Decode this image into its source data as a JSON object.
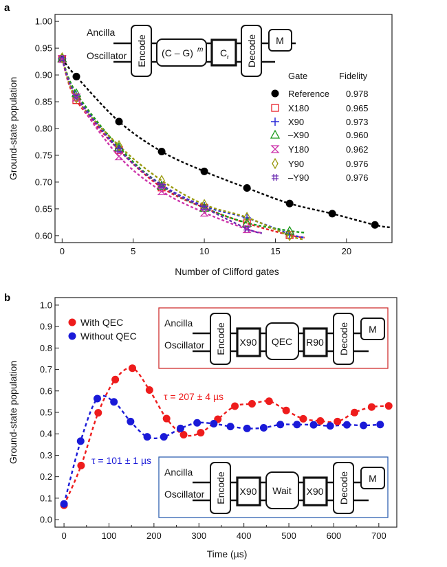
{
  "chart_data": [
    {
      "panel_label": "a",
      "type": "scatter",
      "xlabel": "Number of Clifford gates",
      "ylabel": "Ground-state population",
      "xlim": [
        -0.5,
        23.2
      ],
      "ylim": [
        0.587,
        1.013
      ],
      "xticks": [
        0,
        5,
        10,
        15,
        20
      ],
      "yticks": [
        "0.60",
        "0.65",
        "0.70",
        "0.75",
        "0.80",
        "0.85",
        "0.90",
        "0.95",
        "1.00"
      ],
      "grid": false,
      "legend": {
        "position": "right",
        "header_gate": "Gate",
        "header_fidelity": "Fidelity"
      },
      "series": [
        {
          "name": "Reference",
          "fidelity": "0.978",
          "marker": "filled-circle",
          "color": "#000000",
          "x": [
            0,
            1,
            4,
            7,
            10,
            13,
            16,
            19,
            22
          ],
          "y": [
            0.93,
            0.897,
            0.813,
            0.757,
            0.72,
            0.689,
            0.66,
            0.641,
            0.62
          ]
        },
        {
          "name": "X180",
          "fidelity": "0.965",
          "marker": "open-square",
          "color": "#e8202a",
          "x": [
            0,
            1,
            4,
            7,
            10,
            13,
            16
          ],
          "y": [
            0.93,
            0.853,
            0.76,
            0.69,
            0.652,
            0.623,
            0.601
          ]
        },
        {
          "name": "X90",
          "fidelity": "0.973",
          "marker": "plus",
          "color": "#2a2ad8",
          "x": [
            0,
            1,
            4,
            7,
            10,
            13,
            16
          ],
          "y": [
            0.93,
            0.862,
            0.762,
            0.695,
            0.655,
            0.633,
            0.603
          ]
        },
        {
          "name": "–X90",
          "fidelity": "0.960",
          "marker": "open-triangle",
          "color": "#1a9a1a",
          "x": [
            0,
            1,
            4,
            7,
            10,
            13,
            16
          ],
          "y": [
            0.931,
            0.866,
            0.765,
            0.693,
            0.652,
            0.624,
            0.609
          ]
        },
        {
          "name": "Y180",
          "fidelity": "0.962",
          "marker": "hourglass",
          "color": "#cc33aa",
          "x": [
            0,
            1,
            4,
            7,
            10,
            13
          ],
          "y": [
            0.93,
            0.858,
            0.748,
            0.683,
            0.643,
            0.612
          ]
        },
        {
          "name": "Y90",
          "fidelity": "0.976",
          "marker": "open-diamond",
          "color": "#9a9a10",
          "x": [
            0,
            1,
            4,
            7,
            10,
            13,
            16
          ],
          "y": [
            0.932,
            0.857,
            0.768,
            0.703,
            0.658,
            0.634,
            0.6
          ]
        },
        {
          "name": "–Y90",
          "fidelity": "0.976",
          "marker": "hash",
          "color": "#6a2ab0",
          "x": [
            0,
            1,
            4,
            7,
            10,
            13
          ],
          "y": [
            0.93,
            0.86,
            0.76,
            0.693,
            0.652,
            0.613
          ]
        }
      ],
      "inset": {
        "ancilla": "Ancilla",
        "oscillator": "Oscillator",
        "encode": "Encode",
        "cg": "(C – G)",
        "cg_sup": "m",
        "cr": "C",
        "cr_sub": "r",
        "decode": "Decode",
        "measure": "M"
      }
    },
    {
      "panel_label": "b",
      "type": "scatter",
      "xlabel": "Time (µs)",
      "ylabel": "Ground-state population",
      "xlim": [
        -20,
        740
      ],
      "ylim": [
        -0.035,
        1.035
      ],
      "xticks": [
        0,
        100,
        200,
        300,
        400,
        500,
        600,
        700
      ],
      "yticks": [
        "0.0",
        "0.1",
        "0.2",
        "0.3",
        "0.4",
        "0.5",
        "0.6",
        "0.7",
        "0.8",
        "0.9",
        "1.0"
      ],
      "grid": false,
      "legend": {
        "position": "top-left"
      },
      "series": [
        {
          "name": "With QEC",
          "color": "#ee1c1c",
          "fit_label": "τ = 207 ± 4 µs",
          "x": [
            0,
            38,
            76,
            114,
            152,
            190,
            228,
            266,
            304,
            342,
            380,
            418,
            456,
            494,
            532,
            570,
            608,
            646,
            684,
            722
          ],
          "y": [
            0.067,
            0.252,
            0.498,
            0.653,
            0.706,
            0.604,
            0.471,
            0.396,
            0.405,
            0.468,
            0.529,
            0.54,
            0.552,
            0.509,
            0.47,
            0.46,
            0.457,
            0.499,
            0.525,
            0.53
          ]
        },
        {
          "name": "Without QEC",
          "color": "#1a1ad8",
          "fit_label": "τ = 101 ± 1 µs",
          "x": [
            0,
            37,
            74,
            111,
            148,
            185,
            222,
            259,
            296,
            333,
            370,
            407,
            444,
            481,
            518,
            555,
            592,
            629,
            666,
            703
          ],
          "y": [
            0.073,
            0.366,
            0.564,
            0.549,
            0.457,
            0.386,
            0.386,
            0.425,
            0.451,
            0.447,
            0.434,
            0.425,
            0.428,
            0.443,
            0.443,
            0.442,
            0.437,
            0.442,
            0.439,
            0.443
          ]
        }
      ],
      "inset_qec": {
        "ancilla": "Ancilla",
        "oscillator": "Oscillator",
        "encode": "Encode",
        "gate1": "X90",
        "middle": "QEC",
        "gate2": "R90",
        "decode": "Decode",
        "measure": "M",
        "border_color": "#d03030"
      },
      "inset_wait": {
        "ancilla": "Ancilla",
        "oscillator": "Oscillator",
        "encode": "Encode",
        "gate1": "X90",
        "middle": "Wait",
        "gate2": "X90",
        "decode": "Decode",
        "measure": "M",
        "border_color": "#3060b0"
      }
    }
  ]
}
